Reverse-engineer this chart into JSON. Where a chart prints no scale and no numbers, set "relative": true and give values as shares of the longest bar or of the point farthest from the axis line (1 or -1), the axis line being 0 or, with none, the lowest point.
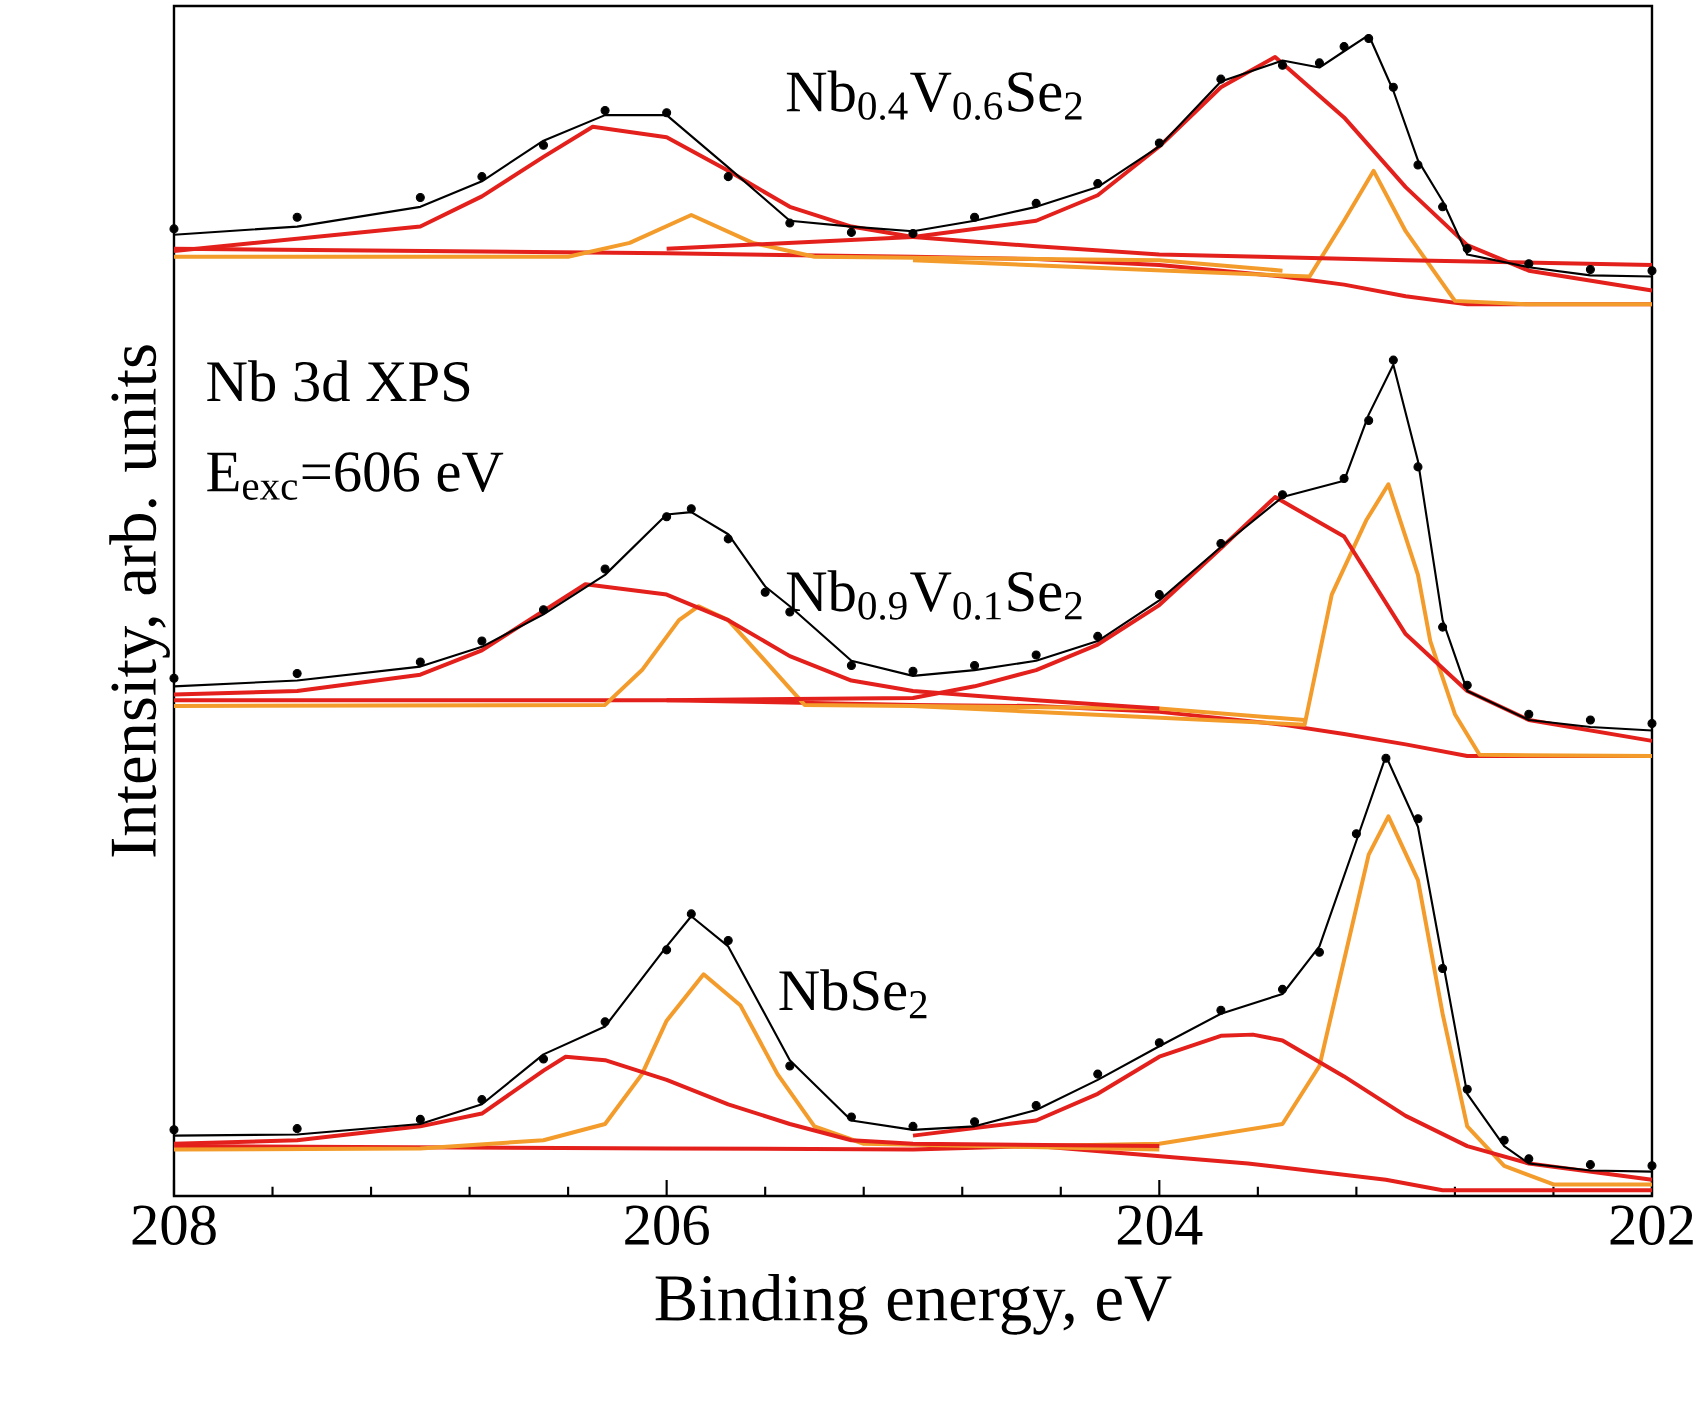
{
  "chart_data": {
    "type": "line",
    "relative": true,
    "xlabel": "Binding energy, eV",
    "ylabel": "Intensity, arb. units",
    "xlim": [
      208,
      202
    ],
    "xticks": [
      208,
      206,
      204,
      202
    ],
    "annotations": [
      "Nb 3d XPS",
      "E$_{exc}$=606 eV",
      "Nb$_{0.4}$V$_{0.6}$Se$_{2}$",
      "Nb$_{0.9}$V$_{0.1}$Se$_{2}$",
      "NbSe$_{2}$"
    ],
    "series": [
      {
        "type": "line",
        "color": "#e3201b",
        "x": [
          208,
          206,
          205,
          204.5,
          204,
          203.5,
          203.25,
          203,
          202.75,
          202.5,
          202
        ],
        "values": [
          0.816,
          0.812,
          0.809,
          0.807,
          0.802,
          0.792,
          0.785,
          0.775,
          0.768,
          0.768,
          0.768
        ]
      },
      {
        "type": "line",
        "color": "#f39c2b",
        "x": [
          208,
          206.4,
          206.15,
          205.9,
          205.65,
          205.4,
          204,
          203.5
        ],
        "values": [
          0.809,
          0.809,
          0.821,
          0.845,
          0.821,
          0.809,
          0.806,
          0.797
        ]
      },
      {
        "type": "line",
        "color": "#f39c2b",
        "x": [
          205,
          203.39,
          203.25,
          203.13,
          203.0,
          202.8,
          202.5,
          202
        ],
        "values": [
          0.806,
          0.792,
          0.84,
          0.883,
          0.831,
          0.771,
          0.768,
          0.768
        ]
      },
      {
        "type": "line",
        "color": "#e3201b",
        "x": [
          208,
          207,
          206.75,
          206.5,
          206.3,
          206,
          205.75,
          205.5,
          205.25,
          205,
          204.5,
          204,
          203,
          202
        ],
        "values": [
          0.814,
          0.835,
          0.861,
          0.895,
          0.921,
          0.912,
          0.883,
          0.852,
          0.835,
          0.826,
          0.818,
          0.811,
          0.806,
          0.802
        ]
      },
      {
        "type": "line",
        "color": "#e3201b",
        "x": [
          206,
          205,
          204.5,
          204.25,
          204,
          203.75,
          203.53,
          203.25,
          203,
          202.75,
          202.5,
          202
        ],
        "values": [
          0.816,
          0.826,
          0.84,
          0.862,
          0.904,
          0.955,
          0.981,
          0.929,
          0.869,
          0.819,
          0.797,
          0.78
        ]
      },
      {
        "type": "line",
        "color": "#000000",
        "x": [
          208,
          207.5,
          207,
          206.75,
          206.5,
          206.25,
          206,
          205.75,
          205.5,
          205.25,
          205,
          204.75,
          204.5,
          204.25,
          204,
          203.75,
          203.5,
          203.35,
          203.25,
          203.15,
          203.05,
          202.95,
          202.85,
          202.75,
          202.5,
          202.25,
          202
        ],
        "values": [
          0.828,
          0.835,
          0.852,
          0.874,
          0.909,
          0.931,
          0.931,
          0.886,
          0.84,
          0.835,
          0.831,
          0.84,
          0.852,
          0.869,
          0.904,
          0.96,
          0.978,
          0.972,
          0.986,
          1,
          0.952,
          0.892,
          0.857,
          0.811,
          0.8,
          0.793,
          0.792
        ]
      },
      {
        "type": "scatter",
        "marker": "circle",
        "color": "#000000",
        "x": [
          208,
          207.5,
          207,
          206.75,
          206.5,
          206.25,
          206,
          205.75,
          205.5,
          205.25,
          205,
          204.75,
          204.5,
          204.25,
          204,
          203.75,
          203.5,
          203.35,
          203.25,
          203.15,
          203.05,
          202.95,
          202.85,
          202.75,
          202.5,
          202.25,
          202
        ],
        "values": [
          0.833,
          0.843,
          0.86,
          0.878,
          0.905,
          0.935,
          0.933,
          0.878,
          0.838,
          0.83,
          0.829,
          0.843,
          0.855,
          0.872,
          0.907,
          0.962,
          0.974,
          0.976,
          0.99,
          0.997,
          0.955,
          0.888,
          0.852,
          0.816,
          0.803,
          0.798,
          0.797
        ]
      },
      {
        "type": "line",
        "color": "#e3201b",
        "x": [
          208,
          206,
          205,
          204.5,
          204,
          203.5,
          203.25,
          203,
          202.75,
          202.5,
          202
        ],
        "values": [
          0.427,
          0.427,
          0.423,
          0.422,
          0.417,
          0.406,
          0.398,
          0.389,
          0.379,
          0.379,
          0.379
        ]
      },
      {
        "type": "line",
        "color": "#f39c2b",
        "x": [
          208,
          206.25,
          206.1,
          205.95,
          205.87,
          205.75,
          205.6,
          205.44,
          204,
          203.41
        ],
        "values": [
          0.422,
          0.423,
          0.453,
          0.496,
          0.508,
          0.496,
          0.461,
          0.423,
          0.42,
          0.41
        ]
      },
      {
        "type": "line",
        "color": "#f39c2b",
        "x": [
          205,
          203.41,
          203.3,
          203.16,
          203.07,
          202.95,
          202.9,
          202.8,
          202.7,
          202
        ],
        "values": [
          0.422,
          0.406,
          0.518,
          0.582,
          0.613,
          0.535,
          0.478,
          0.415,
          0.38,
          0.379
        ]
      },
      {
        "type": "line",
        "color": "#e3201b",
        "x": [
          208,
          207.5,
          207,
          206.75,
          206.5,
          206.33,
          206,
          205.75,
          205.5,
          205.25,
          205,
          204.5,
          204
        ],
        "values": [
          0.432,
          0.435,
          0.449,
          0.47,
          0.504,
          0.527,
          0.518,
          0.496,
          0.465,
          0.444,
          0.435,
          0.427,
          0.42
        ]
      },
      {
        "type": "line",
        "color": "#e3201b",
        "x": [
          206,
          205,
          204.75,
          204.5,
          204.25,
          204,
          203.75,
          203.53,
          203.25,
          203,
          202.75,
          202.5,
          202
        ],
        "values": [
          0.427,
          0.429,
          0.439,
          0.453,
          0.475,
          0.509,
          0.558,
          0.602,
          0.568,
          0.484,
          0.435,
          0.41,
          0.392
        ]
      },
      {
        "type": "line",
        "color": "#000000",
        "x": [
          208,
          207.5,
          207,
          206.75,
          206.5,
          206.25,
          206,
          205.9,
          205.75,
          205.6,
          205.5,
          205.25,
          205,
          204.75,
          204.5,
          204.25,
          204,
          203.75,
          203.5,
          203.25,
          203.15,
          203.05,
          202.95,
          202.85,
          202.75,
          202.5,
          202.25,
          202
        ],
        "values": [
          0.439,
          0.444,
          0.456,
          0.473,
          0.501,
          0.535,
          0.587,
          0.589,
          0.57,
          0.525,
          0.508,
          0.461,
          0.448,
          0.453,
          0.461,
          0.478,
          0.513,
          0.559,
          0.602,
          0.616,
          0.673,
          0.716,
          0.633,
          0.496,
          0.435,
          0.41,
          0.404,
          0.401
        ]
      },
      {
        "type": "scatter",
        "marker": "circle",
        "color": "#000000",
        "x": [
          208,
          207.5,
          207,
          206.75,
          206.5,
          206.25,
          206,
          205.9,
          205.75,
          205.6,
          205.5,
          205.25,
          205,
          204.75,
          204.5,
          204.25,
          204,
          203.75,
          203.5,
          203.25,
          203.15,
          203.05,
          202.95,
          202.85,
          202.75,
          202.5,
          202.25,
          202
        ],
        "values": [
          0.446,
          0.45,
          0.46,
          0.478,
          0.505,
          0.54,
          0.585,
          0.592,
          0.566,
          0.52,
          0.503,
          0.457,
          0.452,
          0.457,
          0.466,
          0.482,
          0.518,
          0.562,
          0.604,
          0.618,
          0.668,
          0.72,
          0.628,
          0.49,
          0.44,
          0.415,
          0.41,
          0.407
        ]
      },
      {
        "type": "line",
        "color": "#e3201b",
        "x": [
          208,
          206,
          205,
          204.5,
          203.64,
          203.08,
          202.85,
          202
        ],
        "values": [
          0.043,
          0.041,
          0.04,
          0.043,
          0.028,
          0.014,
          0.005,
          0.005
        ]
      },
      {
        "type": "line",
        "color": "#f39c2b",
        "x": [
          208,
          207,
          206.5,
          206.25,
          206.1,
          206,
          205.85,
          205.7,
          205.55,
          205.4,
          205.2,
          204
        ],
        "values": [
          0.04,
          0.041,
          0.048,
          0.062,
          0.105,
          0.151,
          0.191,
          0.164,
          0.105,
          0.06,
          0.045,
          0.04
        ]
      },
      {
        "type": "line",
        "color": "#f39c2b",
        "x": [
          204.5,
          204,
          203.5,
          203.35,
          203.25,
          203.15,
          203.07,
          202.95,
          202.85,
          202.75,
          202.6,
          202.4,
          202
        ],
        "values": [
          0.043,
          0.045,
          0.062,
          0.112,
          0.203,
          0.294,
          0.327,
          0.272,
          0.157,
          0.06,
          0.026,
          0.01,
          0.01
        ]
      },
      {
        "type": "line",
        "color": "#e3201b",
        "x": [
          208,
          207.5,
          207,
          206.75,
          206.5,
          206.41,
          206.25,
          206,
          205.75,
          205.5,
          205.25,
          205,
          204
        ],
        "values": [
          0.045,
          0.048,
          0.06,
          0.071,
          0.108,
          0.12,
          0.117,
          0.1,
          0.079,
          0.062,
          0.048,
          0.045,
          0.043
        ]
      },
      {
        "type": "line",
        "color": "#e3201b",
        "x": [
          205,
          204.5,
          204.25,
          204,
          203.75,
          203.62,
          203.5,
          203.25,
          203,
          202.75,
          202.5,
          202
        ],
        "values": [
          0.052,
          0.065,
          0.088,
          0.12,
          0.138,
          0.139,
          0.134,
          0.103,
          0.069,
          0.043,
          0.028,
          0.014
        ]
      },
      {
        "type": "line",
        "color": "#000000",
        "x": [
          208,
          207.5,
          207,
          206.75,
          206.5,
          206.25,
          206,
          205.9,
          205.75,
          205.5,
          205.25,
          205,
          204.75,
          204.5,
          204.25,
          204,
          203.75,
          203.5,
          203.35,
          203.2,
          203.08,
          202.95,
          202.85,
          202.75,
          202.6,
          202.5,
          202.25,
          202
        ],
        "values": [
          0.052,
          0.053,
          0.062,
          0.079,
          0.122,
          0.146,
          0.215,
          0.241,
          0.215,
          0.117,
          0.065,
          0.057,
          0.06,
          0.074,
          0.1,
          0.129,
          0.157,
          0.174,
          0.215,
          0.306,
          0.379,
          0.318,
          0.203,
          0.088,
          0.043,
          0.028,
          0.022,
          0.021
        ]
      },
      {
        "type": "scatter",
        "marker": "circle",
        "color": "#000000",
        "x": [
          208,
          207.5,
          207,
          206.75,
          206.5,
          206.25,
          206,
          205.9,
          205.75,
          205.5,
          205.25,
          205,
          204.75,
          204.5,
          204.25,
          204,
          203.75,
          203.5,
          203.35,
          203.2,
          203.08,
          202.95,
          202.85,
          202.75,
          202.6,
          202.5,
          202.25,
          202
        ],
        "values": [
          0.057,
          0.058,
          0.066,
          0.083,
          0.118,
          0.15,
          0.212,
          0.243,
          0.22,
          0.112,
          0.068,
          0.06,
          0.064,
          0.078,
          0.105,
          0.132,
          0.16,
          0.178,
          0.21,
          0.312,
          0.377,
          0.325,
          0.196,
          0.092,
          0.048,
          0.032,
          0.027,
          0.026
        ]
      }
    ]
  }
}
